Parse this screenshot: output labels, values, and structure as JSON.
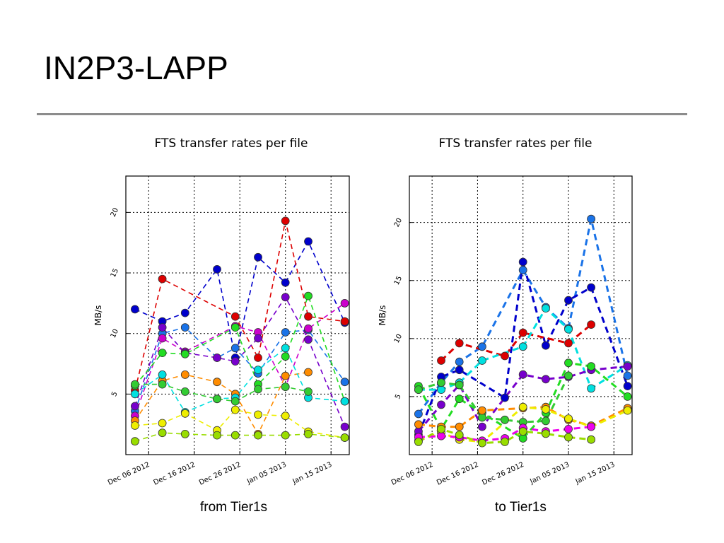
{
  "slide": {
    "title": "IN2P3-LAPP",
    "captions": {
      "left": "from Tier1s",
      "right": "to Tier1s"
    }
  },
  "chart_data": [
    {
      "type": "line",
      "title": "FTS transfer rates per file",
      "ylabel": "MB/s",
      "xlabel": "",
      "ylim": [
        0,
        23
      ],
      "xlim": [
        "2012-12-01",
        "2013-01-19"
      ],
      "y_ticks": [
        5,
        10,
        15,
        20
      ],
      "x_ticks": [
        {
          "date": "2012-12-06",
          "label": "Dec 06 2012"
        },
        {
          "date": "2012-12-16",
          "label": "Dec 16 2012"
        },
        {
          "date": "2012-12-26",
          "label": "Dec 26 2012"
        },
        {
          "date": "2013-01-05",
          "label": "Jan 05 2013"
        },
        {
          "date": "2013-01-15",
          "label": "Jan 15 2013"
        }
      ],
      "grid": true,
      "series": [
        {
          "color": "#0000cc",
          "x": [
            "2012-12-03",
            "2012-12-09",
            "2012-12-14",
            "2012-12-21",
            "2012-12-25",
            "2012-12-30",
            "2013-01-05",
            "2013-01-10",
            "2013-01-18"
          ],
          "y": [
            12.0,
            11.0,
            11.7,
            15.3,
            8.0,
            16.3,
            14.2,
            17.6,
            10.9
          ]
        },
        {
          "color": "#dd0000",
          "x": [
            "2012-12-03",
            "2012-12-09",
            "2012-12-25",
            "2012-12-30",
            "2013-01-05",
            "2013-01-10",
            "2013-01-18"
          ],
          "y": [
            5.3,
            14.5,
            11.4,
            8.0,
            19.3,
            11.4,
            11.0
          ]
        },
        {
          "color": "#1a73e8",
          "x": [
            "2012-12-03",
            "2012-12-09",
            "2012-12-14",
            "2012-12-21",
            "2012-12-25",
            "2012-12-30",
            "2013-01-05",
            "2013-01-10",
            "2013-01-18"
          ],
          "y": [
            3.6,
            10.0,
            10.5,
            8.0,
            8.8,
            6.7,
            10.1,
            10.3,
            6.0
          ]
        },
        {
          "color": "#cc00cc",
          "x": [
            "2012-12-03",
            "2012-12-09",
            "2012-12-14",
            "2012-12-25",
            "2012-12-30",
            "2013-01-05",
            "2013-01-10",
            "2013-01-18"
          ],
          "y": [
            3.2,
            9.6,
            8.5,
            10.6,
            10.1,
            5.6,
            10.4,
            12.5
          ]
        },
        {
          "color": "#7700cc",
          "x": [
            "2012-12-03",
            "2012-12-09",
            "2012-12-14",
            "2012-12-21",
            "2012-12-25",
            "2012-12-30",
            "2013-01-05",
            "2013-01-10",
            "2013-01-18"
          ],
          "y": [
            4.0,
            10.5,
            8.4,
            8.0,
            7.7,
            9.6,
            13.0,
            9.5,
            2.3
          ]
        },
        {
          "color": "#22dd22",
          "x": [
            "2012-12-03",
            "2012-12-09",
            "2012-12-14",
            "2012-12-25",
            "2012-12-30",
            "2013-01-05",
            "2013-01-10",
            "2013-01-18"
          ],
          "y": [
            5.7,
            8.4,
            8.3,
            10.5,
            5.8,
            8.1,
            13.1,
            4.4
          ]
        },
        {
          "color": "#ff8c00",
          "x": [
            "2012-12-03",
            "2012-12-09",
            "2012-12-14",
            "2012-12-21",
            "2012-12-25",
            "2012-12-30",
            "2013-01-05",
            "2013-01-10"
          ],
          "y": [
            2.8,
            6.1,
            6.6,
            6.0,
            5.0,
            1.7,
            6.5,
            6.8
          ]
        },
        {
          "color": "#00e0e0",
          "x": [
            "2012-12-03",
            "2012-12-09",
            "2012-12-14",
            "2012-12-21",
            "2012-12-25",
            "2012-12-30",
            "2013-01-05",
            "2013-01-10",
            "2013-01-18"
          ],
          "y": [
            5.0,
            6.6,
            3.5,
            4.6,
            4.7,
            7.0,
            8.8,
            4.7,
            4.4
          ]
        },
        {
          "color": "#33cc33",
          "x": [
            "2012-12-03",
            "2012-12-09",
            "2012-12-14",
            "2012-12-21",
            "2012-12-25",
            "2012-12-30",
            "2013-01-05",
            "2013-01-10"
          ],
          "y": [
            5.8,
            5.8,
            5.2,
            4.6,
            4.4,
            5.4,
            5.6,
            5.2
          ]
        },
        {
          "color": "#eeee00",
          "x": [
            "2012-12-03",
            "2012-12-09",
            "2012-12-14",
            "2012-12-21",
            "2012-12-25",
            "2012-12-30",
            "2013-01-05",
            "2013-01-10",
            "2013-01-18"
          ],
          "y": [
            2.4,
            2.6,
            3.4,
            2.0,
            3.7,
            3.3,
            3.2,
            1.9,
            1.4
          ]
        },
        {
          "color": "#99dd00",
          "x": [
            "2012-12-03",
            "2012-12-09",
            "2012-12-14",
            "2012-12-21",
            "2012-12-25",
            "2012-12-30",
            "2013-01-05",
            "2013-01-10",
            "2013-01-18"
          ],
          "y": [
            1.1,
            1.8,
            1.7,
            1.6,
            1.6,
            1.6,
            1.6,
            1.7,
            1.4
          ]
        }
      ]
    },
    {
      "type": "line",
      "title": "FTS transfer rates per file",
      "ylabel": "MB/s",
      "xlabel": "",
      "ylim": [
        0,
        24
      ],
      "xlim": [
        "2012-12-01",
        "2013-01-19"
      ],
      "y_ticks": [
        5,
        10,
        15,
        20
      ],
      "x_ticks": [
        {
          "date": "2012-12-06",
          "label": "Dec 06 2012"
        },
        {
          "date": "2012-12-16",
          "label": "Dec 16 2012"
        },
        {
          "date": "2012-12-26",
          "label": "Dec 26 2012"
        },
        {
          "date": "2013-01-05",
          "label": "Jan 05 2013"
        },
        {
          "date": "2013-01-15",
          "label": "Jan 15 2013"
        }
      ],
      "grid": true,
      "series": [
        {
          "color": "#1a73e8",
          "x": [
            "2012-12-03",
            "2012-12-08",
            "2012-12-12",
            "2012-12-17",
            "2012-12-26",
            "2012-12-31",
            "2013-01-05",
            "2013-01-10",
            "2013-01-18"
          ],
          "y": [
            3.5,
            6.2,
            8.0,
            9.3,
            15.9,
            12.7,
            10.9,
            20.3,
            6.8
          ]
        },
        {
          "color": "#0000cc",
          "x": [
            "2012-12-03",
            "2012-12-08",
            "2012-12-12",
            "2012-12-22",
            "2012-12-26",
            "2012-12-31",
            "2013-01-05",
            "2013-01-10",
            "2013-01-18"
          ],
          "y": [
            1.7,
            6.7,
            7.3,
            4.9,
            16.6,
            9.4,
            13.3,
            14.4,
            5.9
          ]
        },
        {
          "color": "#dd0000",
          "x": [
            "2012-12-08",
            "2012-12-12",
            "2012-12-22",
            "2012-12-26",
            "2013-01-05",
            "2013-01-10"
          ],
          "y": [
            8.1,
            9.6,
            8.5,
            10.5,
            9.6,
            11.2
          ]
        },
        {
          "color": "#00e0e0",
          "x": [
            "2012-12-03",
            "2012-12-08",
            "2012-12-12",
            "2012-12-17",
            "2012-12-26",
            "2012-12-31",
            "2013-01-05",
            "2013-01-10",
            "2013-01-18"
          ],
          "y": [
            5.6,
            5.6,
            6.2,
            8.1,
            9.3,
            12.6,
            10.8,
            5.7,
            7.7
          ]
        },
        {
          "color": "#7700cc",
          "x": [
            "2012-12-03",
            "2012-12-08",
            "2012-12-12",
            "2012-12-17",
            "2012-12-26",
            "2012-12-31",
            "2013-01-05",
            "2013-01-10",
            "2013-01-18"
          ],
          "y": [
            2.0,
            4.3,
            6.0,
            2.4,
            6.9,
            6.5,
            6.7,
            7.3,
            7.6
          ]
        },
        {
          "color": "#22dd22",
          "x": [
            "2012-12-03",
            "2012-12-08",
            "2012-12-12",
            "2012-12-17",
            "2012-12-26",
            "2012-12-31",
            "2013-01-05",
            "2013-01-10",
            "2013-01-18"
          ],
          "y": [
            5.9,
            2.2,
            4.8,
            3.6,
            1.4,
            3.6,
            7.9,
            7.6,
            5.0
          ]
        },
        {
          "color": "#33cc33",
          "x": [
            "2012-12-03",
            "2012-12-08",
            "2012-12-12",
            "2012-12-17",
            "2012-12-22",
            "2012-12-26",
            "2012-12-31",
            "2013-01-05"
          ],
          "y": [
            5.6,
            6.2,
            6.0,
            3.2,
            3.0,
            2.8,
            2.9,
            6.8
          ]
        },
        {
          "color": "#ff8c00",
          "x": [
            "2012-12-03",
            "2012-12-08",
            "2012-12-12",
            "2012-12-17",
            "2012-12-26",
            "2012-12-31",
            "2013-01-05",
            "2013-01-10",
            "2013-01-18"
          ],
          "y": [
            2.6,
            2.4,
            2.4,
            3.8,
            4.0,
            4.1,
            3.0,
            2.5,
            4.0
          ]
        },
        {
          "color": "#eeee00",
          "x": [
            "2012-12-03",
            "2012-12-08",
            "2012-12-12",
            "2012-12-17",
            "2012-12-26",
            "2012-12-31",
            "2013-01-05",
            "2013-01-10",
            "2013-01-18"
          ],
          "y": [
            1.2,
            1.9,
            1.3,
            1.1,
            4.1,
            3.9,
            3.1,
            2.4,
            3.8
          ]
        },
        {
          "color": "#ee00ee",
          "x": [
            "2012-12-03",
            "2012-12-08",
            "2012-12-12",
            "2012-12-17",
            "2012-12-22",
            "2012-12-26",
            "2012-12-31",
            "2013-01-05",
            "2013-01-10"
          ],
          "y": [
            1.5,
            1.6,
            1.5,
            1.2,
            1.4,
            2.3,
            2.0,
            2.2,
            2.4
          ]
        },
        {
          "color": "#99dd00",
          "x": [
            "2012-12-03",
            "2012-12-08",
            "2012-12-12",
            "2012-12-17",
            "2012-12-22",
            "2012-12-26",
            "2012-12-31",
            "2013-01-05",
            "2013-01-10"
          ],
          "y": [
            1.1,
            2.2,
            1.7,
            1.0,
            1.1,
            2.0,
            1.8,
            1.5,
            1.3
          ]
        }
      ]
    }
  ]
}
